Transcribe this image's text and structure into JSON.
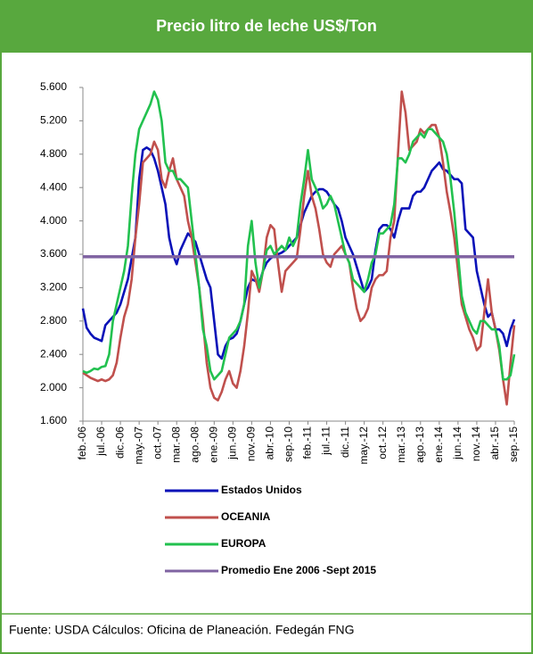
{
  "chart_data": {
    "type": "line",
    "title": "Precio litro de leche US$/Ton",
    "source": "Fuente: USDA Cálculos: Oficina de Planeación. Fedegán FNG",
    "categories": [
      "feb.-06",
      null,
      null,
      null,
      null,
      "jul.-06",
      null,
      null,
      null,
      null,
      "dic.-06",
      null,
      null,
      null,
      null,
      "may.-07",
      null,
      null,
      null,
      null,
      "oct.-07",
      null,
      null,
      null,
      null,
      "mar.-08",
      null,
      null,
      null,
      null,
      "ago.-08",
      null,
      null,
      null,
      null,
      "ene.-09",
      null,
      null,
      null,
      null,
      "jun.-09",
      null,
      null,
      null,
      null,
      "nov.-09",
      null,
      null,
      null,
      null,
      "abr.-10",
      null,
      null,
      null,
      null,
      "sep.-10",
      null,
      null,
      null,
      null,
      "feb.-11",
      null,
      null,
      null,
      null,
      "jul.-11",
      null,
      null,
      null,
      null,
      "dic.-11",
      null,
      null,
      null,
      null,
      "may.-12",
      null,
      null,
      null,
      null,
      "oct.-12",
      null,
      null,
      null,
      null,
      "mar.-13",
      null,
      null,
      null,
      null,
      "ago.-13",
      null,
      null,
      null,
      null,
      "ene.-14",
      null,
      null,
      null,
      null,
      "jun.-14",
      null,
      null,
      null,
      null,
      "nov.-14",
      null,
      null,
      null,
      null,
      "abr.-15",
      null,
      null,
      null,
      null,
      "sep.-15"
    ],
    "series": [
      {
        "name": "Estados Unidos",
        "color": "#0a12b8",
        "values": [
          2950,
          2720,
          2650,
          2600,
          2580,
          2560,
          2750,
          2800,
          2850,
          2900,
          3000,
          3150,
          3300,
          3550,
          3800,
          4500,
          4850,
          4880,
          4850,
          4750,
          4600,
          4400,
          4200,
          3800,
          3600,
          3480,
          3650,
          3750,
          3850,
          3800,
          3750,
          3600,
          3450,
          3300,
          3200,
          2800,
          2400,
          2350,
          2500,
          2580,
          2600,
          2650,
          2800,
          3000,
          3200,
          3300,
          3280,
          3250,
          3400,
          3500,
          3550,
          3580,
          3600,
          3620,
          3650,
          3700,
          3750,
          3800,
          3950,
          4100,
          4200,
          4300,
          4350,
          4380,
          4380,
          4350,
          4280,
          4200,
          4150,
          4000,
          3800,
          3700,
          3600,
          3450,
          3300,
          3150,
          3200,
          3300,
          3650,
          3900,
          3950,
          3950,
          3900,
          3800,
          4000,
          4150,
          4150,
          4150,
          4300,
          4350,
          4350,
          4400,
          4500,
          4600,
          4650,
          4700,
          4620,
          4600,
          4550,
          4500,
          4500,
          4450,
          3900,
          3850,
          3800,
          3400,
          3200,
          3000,
          2850,
          2900,
          2700,
          2700,
          2650,
          2500,
          2700,
          2820
        ]
      },
      {
        "name": "OCEANIA",
        "color": "#c0504d",
        "values": [
          2180,
          2150,
          2120,
          2100,
          2080,
          2100,
          2080,
          2100,
          2150,
          2300,
          2600,
          2850,
          3000,
          3300,
          3800,
          4200,
          4700,
          4750,
          4800,
          4950,
          4850,
          4500,
          4400,
          4600,
          4750,
          4500,
          4400,
          4300,
          4000,
          3800,
          3500,
          3200,
          2800,
          2300,
          2000,
          1880,
          1850,
          1950,
          2100,
          2200,
          2050,
          2000,
          2200,
          2500,
          2900,
          3400,
          3300,
          3150,
          3400,
          3800,
          3950,
          3900,
          3500,
          3150,
          3400,
          3450,
          3500,
          3550,
          3900,
          4300,
          4600,
          4300,
          4150,
          3900,
          3600,
          3500,
          3450,
          3600,
          3650,
          3700,
          3600,
          3500,
          3200,
          2950,
          2800,
          2850,
          2950,
          3200,
          3300,
          3350,
          3350,
          3400,
          3800,
          4000,
          4800,
          5550,
          5300,
          4850,
          4900,
          4950,
          5100,
          5050,
          5100,
          5150,
          5150,
          5000,
          4700,
          4350,
          4100,
          3800,
          3400,
          3000,
          2850,
          2700,
          2600,
          2450,
          2500,
          2900,
          3300,
          2900,
          2700,
          2450,
          2100,
          1800,
          2300,
          2750
        ]
      },
      {
        "name": "EUROPA",
        "color": "#22c14f",
        "values": [
          2200,
          2180,
          2200,
          2230,
          2220,
          2250,
          2260,
          2400,
          2800,
          3000,
          3200,
          3400,
          3700,
          4300,
          4800,
          5100,
          5200,
          5300,
          5400,
          5550,
          5450,
          5200,
          4700,
          4600,
          4600,
          4500,
          4500,
          4450,
          4400,
          4000,
          3600,
          3200,
          2700,
          2500,
          2200,
          2100,
          2150,
          2200,
          2400,
          2600,
          2650,
          2700,
          2800,
          3000,
          3700,
          4000,
          3500,
          3200,
          3400,
          3650,
          3700,
          3600,
          3650,
          3700,
          3650,
          3800,
          3700,
          3800,
          4200,
          4500,
          4850,
          4500,
          4400,
          4300,
          4150,
          4200,
          4300,
          4200,
          4000,
          3800,
          3600,
          3500,
          3300,
          3250,
          3200,
          3150,
          3300,
          3500,
          3600,
          3850,
          3850,
          3900,
          3950,
          4200,
          4750,
          4750,
          4700,
          4800,
          4950,
          5000,
          5050,
          5000,
          5100,
          5100,
          5050,
          5000,
          4950,
          4800,
          4500,
          4100,
          3600,
          3100,
          2900,
          2800,
          2700,
          2650,
          2800,
          2800,
          2750,
          2700,
          2700,
          2500,
          2100,
          2100,
          2150,
          2400
        ]
      },
      {
        "name": "Promedio Ene 2006 -Sept 2015",
        "color": "#8064a2",
        "value": 3570
      }
    ],
    "ylim": [
      1600,
      5600
    ],
    "yticks": [
      {
        "value": 1600,
        "label": "1.600"
      },
      {
        "value": 2000,
        "label": "2.000"
      },
      {
        "value": 2400,
        "label": "2.400"
      },
      {
        "value": 2800,
        "label": "2.800"
      },
      {
        "value": 3200,
        "label": "3.200"
      },
      {
        "value": 3600,
        "label": "3.600"
      },
      {
        "value": 4000,
        "label": "4.000"
      },
      {
        "value": 4400,
        "label": "4.400"
      },
      {
        "value": 4800,
        "label": "4.800"
      },
      {
        "value": 5200,
        "label": "5.200"
      },
      {
        "value": 5600,
        "label": "5.600"
      }
    ],
    "grid": false
  }
}
